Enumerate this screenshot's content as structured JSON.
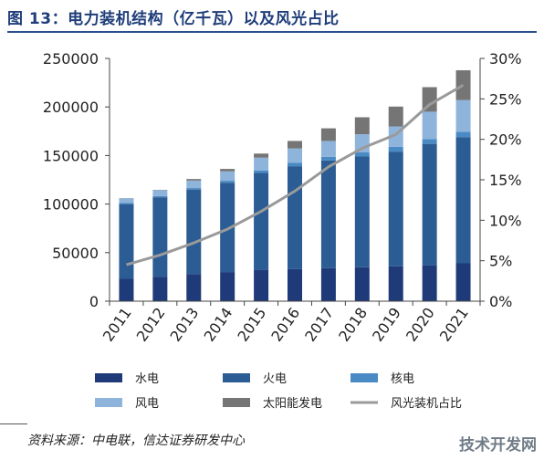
{
  "title": "图 13：电力装机结构（亿千瓦）以及风光占比",
  "source": "资料来源：中电联，信达证券研发中心",
  "watermark": "技术开发网",
  "colors": {
    "hydro": "#1f3a78",
    "thermal": "#2b5c93",
    "nuclear": "#4a8ac4",
    "wind": "#8fb4dc",
    "solar": "#757575",
    "ratio": "#9a9a9a",
    "title": "#1f3d7a"
  },
  "chart_data": {
    "type": "bar",
    "stacked": true,
    "categories": [
      "2011",
      "2012",
      "2013",
      "2014",
      "2015",
      "2016",
      "2017",
      "2018",
      "2019",
      "2020",
      "2021"
    ],
    "y_left": {
      "ticks": [
        "0",
        "50000",
        "100000",
        "150000",
        "200000",
        "250000"
      ],
      "ylim": [
        0,
        250000
      ]
    },
    "y_right": {
      "ticks": [
        "0%",
        "5%",
        "10%",
        "15%",
        "20%",
        "25%",
        "30%"
      ],
      "ylim": [
        0,
        0.3
      ]
    },
    "series": [
      {
        "name": "水电",
        "values": [
          23000,
          25000,
          28000,
          30000,
          32000,
          33000,
          34000,
          35000,
          36000,
          37000,
          39000
        ]
      },
      {
        "name": "火电",
        "values": [
          77000,
          82000,
          87000,
          92000,
          100000,
          106000,
          111000,
          114000,
          118000,
          125000,
          130000
        ]
      },
      {
        "name": "核电",
        "values": [
          1300,
          1300,
          1500,
          2000,
          2700,
          3400,
          3600,
          4500,
          4900,
          5000,
          5300
        ]
      },
      {
        "name": "风电",
        "values": [
          4600,
          6100,
          7700,
          9700,
          13100,
          14900,
          16400,
          18400,
          21000,
          28100,
          32800
        ]
      },
      {
        "name": "太阳能发电",
        "values": [
          200,
          300,
          1600,
          2500,
          4200,
          7700,
          13000,
          17500,
          20500,
          25300,
          30700
        ]
      }
    ],
    "line": {
      "name": "风光装机占比",
      "values": [
        0.045,
        0.057,
        0.072,
        0.089,
        0.111,
        0.136,
        0.166,
        0.189,
        0.206,
        0.243,
        0.267
      ]
    },
    "legend": [
      "水电",
      "火电",
      "核电",
      "风电",
      "太阳能发电",
      "风光装机占比"
    ],
    "legend_position": "bottom",
    "grid": false
  }
}
